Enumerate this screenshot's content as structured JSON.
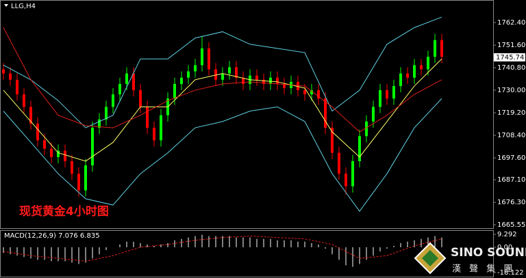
{
  "chart_data": [
    {
      "type": "candlestick",
      "title": "LLG,H4",
      "annotation": "现货黄金4小时图",
      "up_color": "#00ff00",
      "down_color": "#ff0000",
      "open": [
        1740,
        1738,
        1735,
        1728,
        1722,
        1714,
        1706,
        1702,
        1698,
        1701,
        1696,
        1690,
        1682,
        1694,
        1712,
        1716,
        1722,
        1728,
        1733,
        1738,
        1730,
        1722,
        1712,
        1706,
        1718,
        1726,
        1733,
        1736,
        1739,
        1742,
        1750,
        1740,
        1735,
        1738,
        1741,
        1736,
        1733,
        1737,
        1735,
        1733,
        1736,
        1733,
        1731,
        1734,
        1730,
        1728,
        1730,
        1726,
        1712,
        1700,
        1690,
        1684,
        1696,
        1708,
        1715,
        1722,
        1730,
        1726,
        1732,
        1738,
        1736,
        1742,
        1740,
        1746,
        1754
      ],
      "high": [
        1743,
        1741,
        1738,
        1731,
        1725,
        1717,
        1709,
        1705,
        1704,
        1704,
        1699,
        1693,
        1697,
        1715,
        1719,
        1725,
        1731,
        1736,
        1741,
        1741,
        1733,
        1725,
        1715,
        1721,
        1729,
        1736,
        1739,
        1742,
        1745,
        1756,
        1753,
        1743,
        1741,
        1744,
        1744,
        1739,
        1740,
        1740,
        1738,
        1739,
        1739,
        1736,
        1737,
        1737,
        1733,
        1733,
        1733,
        1729,
        1715,
        1703,
        1693,
        1699,
        1711,
        1718,
        1725,
        1733,
        1733,
        1735,
        1741,
        1741,
        1745,
        1745,
        1749,
        1757,
        1757
      ],
      "low": [
        1735,
        1732,
        1725,
        1719,
        1711,
        1703,
        1699,
        1695,
        1695,
        1693,
        1687,
        1679,
        1679,
        1691,
        1709,
        1713,
        1719,
        1725,
        1730,
        1727,
        1719,
        1709,
        1703,
        1703,
        1715,
        1723,
        1730,
        1733,
        1736,
        1739,
        1737,
        1732,
        1732,
        1735,
        1733,
        1730,
        1730,
        1732,
        1730,
        1730,
        1730,
        1728,
        1728,
        1727,
        1725,
        1725,
        1723,
        1709,
        1697,
        1687,
        1680,
        1681,
        1693,
        1705,
        1712,
        1719,
        1723,
        1723,
        1729,
        1733,
        1733,
        1737,
        1737,
        1743,
        1743
      ],
      "close": [
        1738,
        1735,
        1728,
        1722,
        1714,
        1706,
        1702,
        1698,
        1701,
        1696,
        1690,
        1682,
        1694,
        1712,
        1716,
        1722,
        1728,
        1733,
        1738,
        1730,
        1722,
        1712,
        1706,
        1718,
        1726,
        1733,
        1736,
        1739,
        1742,
        1750,
        1740,
        1735,
        1738,
        1741,
        1736,
        1733,
        1737,
        1735,
        1733,
        1736,
        1733,
        1731,
        1734,
        1730,
        1728,
        1730,
        1726,
        1712,
        1700,
        1690,
        1684,
        1696,
        1708,
        1715,
        1722,
        1730,
        1726,
        1732,
        1738,
        1736,
        1742,
        1740,
        1746,
        1754,
        1746
      ],
      "lines": [
        {
          "color": "#5fd3e6",
          "x": [
            0,
            4,
            8,
            12,
            16,
            20,
            24,
            28,
            32,
            36,
            40,
            44,
            48,
            52,
            56,
            60,
            64
          ],
          "values": [
            1742,
            1735,
            1725,
            1712,
            1718,
            1745,
            1745,
            1755,
            1758,
            1752,
            1750,
            1748,
            1720,
            1730,
            1752,
            1760,
            1765
          ]
        },
        {
          "color": "#5fd3e6",
          "x": [
            0,
            4,
            8,
            12,
            16,
            20,
            24,
            28,
            32,
            36,
            40,
            44,
            48,
            52,
            56,
            60,
            64
          ],
          "values": [
            1720,
            1705,
            1690,
            1678,
            1675,
            1690,
            1700,
            1712,
            1715,
            1720,
            1722,
            1715,
            1690,
            1672,
            1690,
            1712,
            1726
          ]
        },
        {
          "color": "#ffff66",
          "x": [
            0,
            4,
            8,
            12,
            16,
            20,
            24,
            28,
            32,
            36,
            40,
            44,
            48,
            52,
            56,
            60,
            64
          ],
          "values": [
            1730,
            1715,
            1700,
            1696,
            1705,
            1722,
            1722,
            1735,
            1738,
            1735,
            1734,
            1731,
            1710,
            1698,
            1715,
            1732,
            1745
          ]
        },
        {
          "color": "#e0201a",
          "x": [
            0,
            4,
            8,
            12,
            16,
            20,
            24,
            28,
            32,
            36,
            40,
            44,
            48,
            52,
            56,
            60,
            64
          ],
          "values": [
            1760,
            1735,
            1718,
            1713,
            1712,
            1718,
            1725,
            1730,
            1733,
            1734,
            1733,
            1732,
            1722,
            1710,
            1718,
            1728,
            1735
          ]
        }
      ],
      "ylim": [
        1663.6,
        1773.2
      ],
      "yticks": [
        {
          "value": 1762.4,
          "label": "1762.40"
        },
        {
          "value": 1751.6,
          "label": "1751.60"
        },
        {
          "value": 1740.8,
          "label": "1740.80"
        },
        {
          "value": 1730,
          "label": "1730.00"
        },
        {
          "value": 1719.2,
          "label": "1719.20"
        },
        {
          "value": 1708.4,
          "label": "1708.40"
        },
        {
          "value": 1697.6,
          "label": "1697.60"
        },
        {
          "value": 1687.1,
          "label": "1687.10"
        },
        {
          "value": 1676.3,
          "label": "1676.30"
        },
        {
          "value": 1665.55,
          "label": "1665.55"
        }
      ],
      "current_price": {
        "value": 1745.74,
        "label": "1745.74"
      }
    },
    {
      "type": "macd",
      "label": "MACD(12,26,9) 7.076 6.835",
      "color": "#ffffff",
      "values": [
        -4,
        -5,
        -6,
        -7,
        -8,
        -9,
        -9,
        -10,
        -10,
        -10,
        -11,
        -12,
        -11,
        -8,
        -5,
        -2,
        0,
        2,
        4,
        4,
        3,
        2,
        1,
        2,
        3,
        5,
        6,
        7,
        8,
        9,
        8,
        8,
        8,
        8,
        7,
        7,
        7,
        6,
        6,
        6,
        5,
        5,
        5,
        4,
        4,
        3,
        2,
        -1,
        -5,
        -9,
        -13,
        -14,
        -12,
        -9,
        -6,
        -3,
        -1,
        1,
        3,
        4,
        5,
        6,
        7,
        8,
        7
      ],
      "signal": {
        "color": "#e0201a",
        "x": [
          0,
          4,
          8,
          12,
          16,
          20,
          24,
          28,
          32,
          36,
          40,
          44,
          48,
          52,
          56,
          60,
          64
        ],
        "values": [
          -3,
          -6,
          -8,
          -10,
          -6,
          0,
          2,
          5,
          7,
          8,
          7,
          6,
          2,
          -8,
          -6,
          1,
          6
        ]
      },
      "ylim": [
        -21.06,
        12.23
      ],
      "yticks": [
        9.292,
        {
          "value": 0,
          "label": "0.00"
        },
        -18.122
      ]
    }
  ],
  "logo": {
    "name": "SINO SOUND",
    "subtitle": "漢 聲 集 團"
  }
}
